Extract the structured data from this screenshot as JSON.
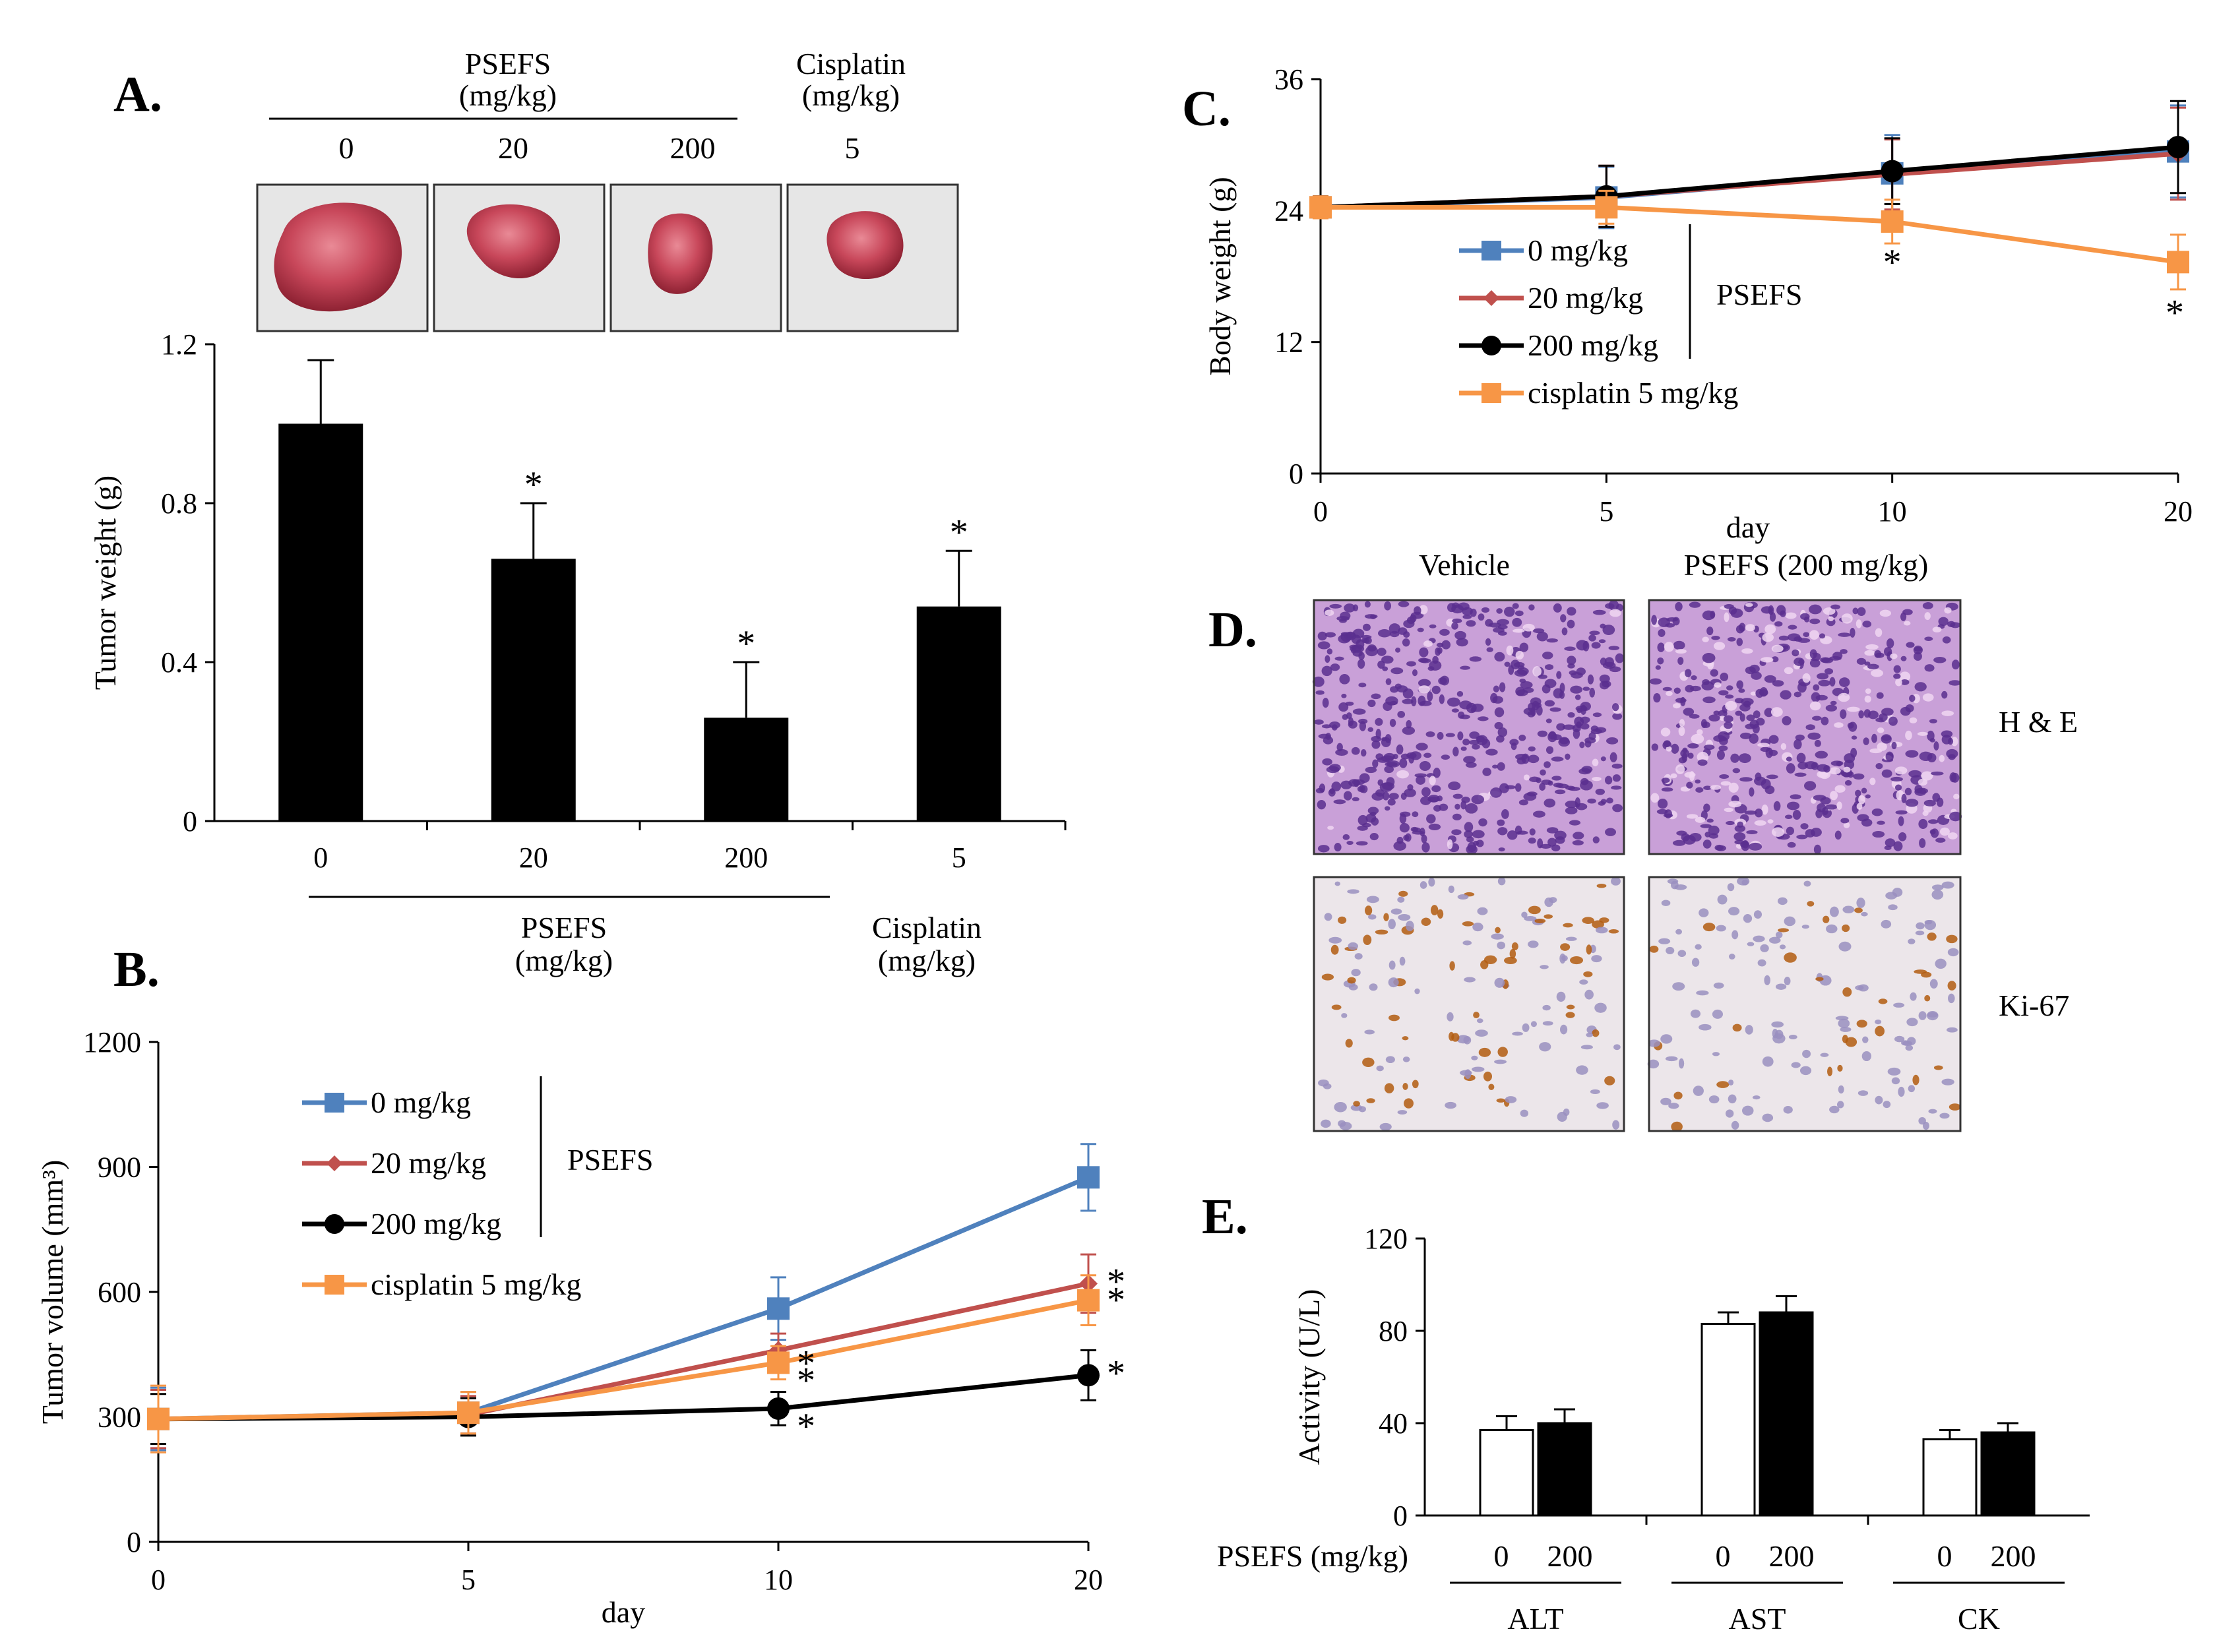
{
  "panels": {
    "a": "A.",
    "b": "B.",
    "c": "C.",
    "d": "D.",
    "e": "E."
  },
  "photo_header": {
    "psefs": "PSEFS",
    "unit1": "(mg/kg)",
    "cisplatin": "Cisplatin",
    "unit2": "(mg/kg)",
    "doses": [
      "0",
      "20",
      "200",
      "5"
    ]
  },
  "histology": {
    "cols": [
      "Vehicle",
      "PSEFS (200 mg/kg)"
    ],
    "rows": [
      "H & E",
      "Ki-67"
    ]
  },
  "colors": {
    "blue": "#4f81bd",
    "red": "#c0504d",
    "black": "#000000",
    "orange": "#f79646",
    "tumor": "#c8475a",
    "he_bg": "#c9a0d8",
    "he_dot": "#5b2f8f",
    "ki_bg": "#ece6ea",
    "ki_dot": "#b35c10",
    "ki_blue": "#9a8fbf"
  },
  "chart_data": [
    {
      "id": "A",
      "type": "bar",
      "categories": [
        "0",
        "20",
        "200",
        "5"
      ],
      "values": [
        1.0,
        0.66,
        0.26,
        0.54
      ],
      "errors": [
        0.16,
        0.14,
        0.14,
        0.14
      ],
      "significant": [
        false,
        true,
        true,
        true
      ],
      "asterisk": "*",
      "ylabel": "Tumor weight (g)",
      "ylim": [
        0,
        1.2
      ],
      "yticks": [
        0,
        0.4,
        0.8,
        1.2
      ],
      "ytick_labels": [
        "0",
        "0.4",
        "0.8",
        "1.2"
      ],
      "group1_label": "PSEFS",
      "group1_unit": "(mg/kg)",
      "group2_label": "Cisplatin",
      "group2_unit": "(mg/kg)"
    },
    {
      "id": "B",
      "type": "line",
      "x": [
        "0",
        "5",
        "10",
        "20"
      ],
      "xlabel": "day",
      "ylabel": "Tumor volume (mm³)",
      "ylim": [
        0,
        1200
      ],
      "yticks": [
        0,
        300,
        600,
        900,
        1200
      ],
      "ytick_labels": [
        "0",
        "300",
        "600",
        "900",
        "1200"
      ],
      "bracket_label": "PSEFS",
      "asterisk": "*",
      "series": [
        {
          "name": "0 mg/kg",
          "color": "#4f81bd",
          "marker": "square",
          "values": [
            295,
            310,
            560,
            875
          ],
          "errors": [
            75,
            50,
            75,
            80
          ]
        },
        {
          "name": "20 mg/kg",
          "color": "#c0504d",
          "marker": "diamond",
          "values": [
            295,
            305,
            460,
            620
          ],
          "errors": [
            70,
            45,
            40,
            70
          ]
        },
        {
          "name": "200 mg/kg",
          "color": "#000000",
          "marker": "circle",
          "values": [
            295,
            300,
            320,
            400
          ],
          "errors": [
            60,
            45,
            40,
            60
          ]
        },
        {
          "name": "cisplatin 5 mg/kg",
          "color": "#f79646",
          "marker": "square",
          "values": [
            295,
            310,
            430,
            580
          ],
          "errors": [
            80,
            50,
            40,
            60
          ]
        }
      ]
    },
    {
      "id": "C",
      "type": "line",
      "x": [
        "0",
        "5",
        "10",
        "20"
      ],
      "xlabel": "day",
      "ylabel": "Body weight (g)",
      "ylim": [
        0,
        36
      ],
      "yticks": [
        0,
        12,
        24,
        36
      ],
      "ytick_labels": [
        "0",
        "12",
        "24",
        "36"
      ],
      "bracket_label": "PSEFS",
      "asterisk": "*",
      "series": [
        {
          "name": "0 mg/kg",
          "color": "#4f81bd",
          "marker": "square",
          "values": [
            24.3,
            25.2,
            27.4,
            29.4
          ],
          "errors": [
            1.0,
            2.8,
            3.5,
            4.2
          ]
        },
        {
          "name": "20 mg/kg",
          "color": "#c0504d",
          "marker": "diamond",
          "values": [
            24.3,
            25.3,
            27.3,
            29.2
          ],
          "errors": [
            1.0,
            2.8,
            3.2,
            4.2
          ]
        },
        {
          "name": "200 mg/kg",
          "color": "#000000",
          "marker": "circle",
          "values": [
            24.3,
            25.3,
            27.6,
            29.8
          ],
          "errors": [
            1.0,
            2.8,
            3.0,
            4.2
          ]
        },
        {
          "name": "cisplatin 5 mg/kg",
          "color": "#f79646",
          "marker": "square",
          "values": [
            24.3,
            24.3,
            23.0,
            19.3
          ],
          "errors": [
            1.0,
            1.5,
            2.0,
            2.5
          ]
        }
      ]
    },
    {
      "id": "E",
      "type": "bar",
      "groups": [
        "ALT",
        "AST",
        "CK"
      ],
      "dose_label": "PSEFS (mg/kg)",
      "doses": [
        "0",
        "200"
      ],
      "series": [
        {
          "name": "0",
          "fill": "#ffffff",
          "values": [
            37,
            83,
            33
          ],
          "errors": [
            6,
            5,
            4
          ]
        },
        {
          "name": "200",
          "fill": "#000000",
          "values": [
            40,
            88,
            36
          ],
          "errors": [
            6,
            7,
            4
          ]
        }
      ],
      "ylabel": "Activity (U/L)",
      "ylim": [
        0,
        120
      ],
      "yticks": [
        0,
        40,
        80,
        120
      ],
      "ytick_labels": [
        "0",
        "40",
        "80",
        "120"
      ]
    }
  ]
}
